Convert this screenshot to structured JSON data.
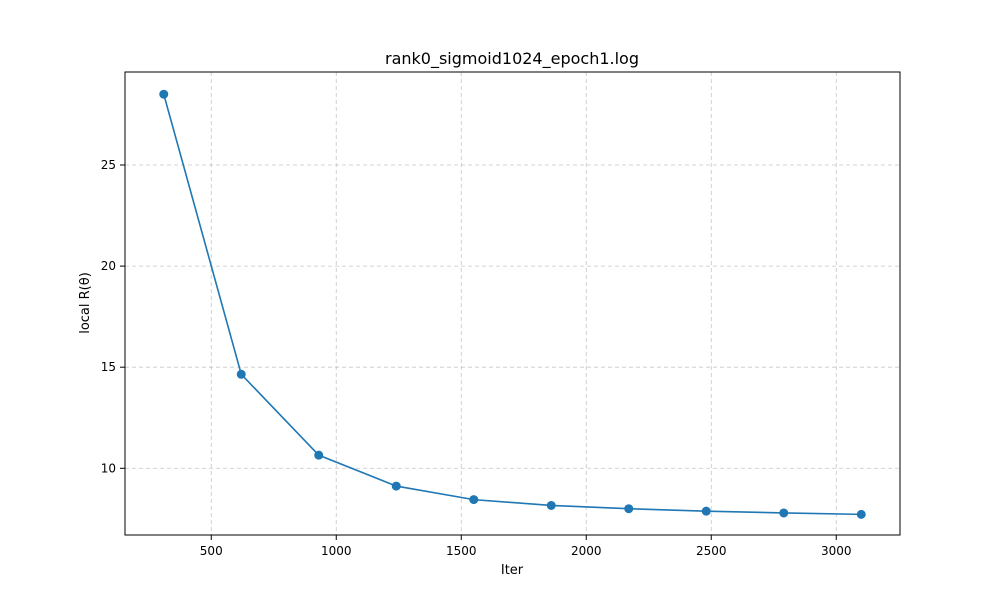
{
  "chart_data": {
    "type": "line",
    "title": "rank0_sigmoid1024_epoch1.log",
    "xlabel": "Iter",
    "ylabel": "local R(θ)",
    "x": [
      310,
      620,
      930,
      1240,
      1550,
      1860,
      2170,
      2480,
      2790,
      3100
    ],
    "series": [
      {
        "values": [
          28.5,
          14.65,
          10.65,
          9.12,
          8.45,
          8.16,
          8.0,
          7.88,
          7.79,
          7.72
        ],
        "color": "#1f77b4",
        "marker": "circle"
      }
    ],
    "xlim": [
      155,
      3255
    ],
    "ylim": [
      6.7,
      29.6
    ],
    "xticks": [
      500,
      1000,
      1500,
      2000,
      2500,
      3000
    ],
    "yticks": [
      10,
      15,
      20,
      25
    ],
    "grid": true,
    "legend": "none"
  }
}
